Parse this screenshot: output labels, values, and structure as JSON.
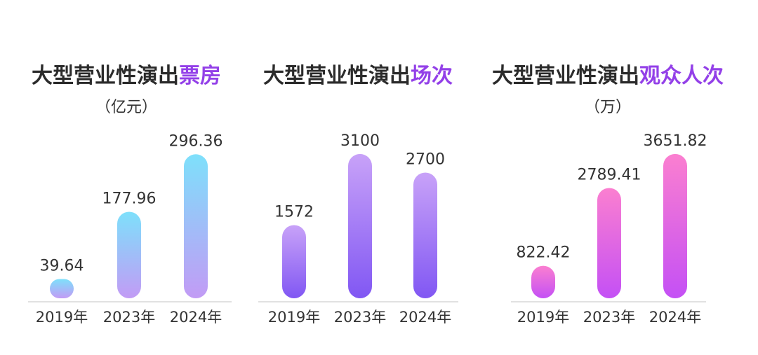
{
  "chart_data": [
    {
      "type": "bar",
      "title": "大型营业性演出票房",
      "title_main": "大型营业性演出",
      "title_accent": "票房",
      "unit": "（亿元）",
      "categories": [
        "2019年",
        "2023年",
        "2024年"
      ],
      "values": [
        39.64,
        177.96,
        296.36
      ],
      "value_labels": [
        "39.64",
        "177.96",
        "296.36"
      ],
      "ylim": [
        0,
        340
      ],
      "gradient": [
        "#7ee0fb",
        "#c29bf5"
      ]
    },
    {
      "type": "bar",
      "title": "大型营业性演出场次",
      "title_main": "大型营业性演出",
      "title_accent": "场次",
      "unit": "",
      "categories": [
        "2019年",
        "2023年",
        "2024年"
      ],
      "values": [
        1572,
        3100,
        2700
      ],
      "value_labels": [
        "1572",
        "3100",
        "2700"
      ],
      "ylim": [
        0,
        3550
      ],
      "gradient": [
        "#c8a2f8",
        "#8157f3"
      ]
    },
    {
      "type": "bar",
      "title": "大型营业性演出观众人次",
      "title_main": "大型营业性演出",
      "title_accent": "观众人次",
      "unit": "（万）",
      "categories": [
        "2019年",
        "2023年",
        "2024年"
      ],
      "values": [
        822.42,
        2789.41,
        3651.82
      ],
      "value_labels": [
        "822.42",
        "2789.41",
        "3651.82"
      ],
      "ylim": [
        0,
        4180
      ],
      "gradient": [
        "#fb7fd0",
        "#c450f5"
      ]
    }
  ],
  "colors": {
    "title_text": "#2b2b2b",
    "accent_purple": "#9340e8",
    "axis_line": "#cfcfcf",
    "label_text": "#333333"
  }
}
